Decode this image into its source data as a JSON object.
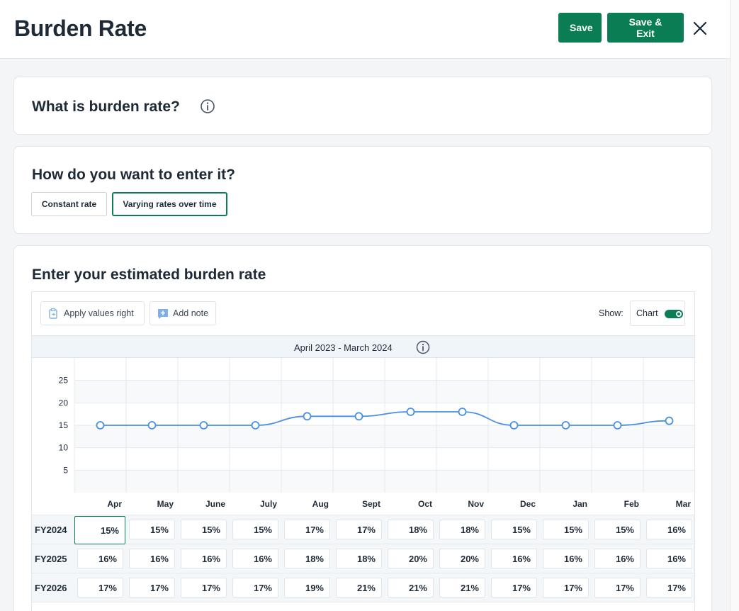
{
  "header": {
    "title": "Burden Rate",
    "save_label": "Save",
    "save_exit_label": "Save & Exit"
  },
  "section_what": {
    "title": "What is burden rate?"
  },
  "section_how": {
    "title": "How do you want to enter it?",
    "options": [
      "Constant rate",
      "Varying rates over time"
    ],
    "selected": "Varying rates over time"
  },
  "section_enter": {
    "title": "Enter your estimated burden rate",
    "toolbar": {
      "apply_label": "Apply values right",
      "note_label": "Add note",
      "show_label": "Show:",
      "chart_label": "Chart",
      "chart_on": true
    },
    "period": "April 2023 - March 2024",
    "months": [
      "Apr",
      "May",
      "June",
      "July",
      "Aug",
      "Sept",
      "Oct",
      "Nov",
      "Dec",
      "Jan",
      "Feb",
      "Mar"
    ],
    "rows": [
      {
        "label": "FY2024",
        "values": [
          "15%",
          "15%",
          "15%",
          "15%",
          "17%",
          "17%",
          "18%",
          "18%",
          "15%",
          "15%",
          "15%",
          "16%"
        ]
      },
      {
        "label": "FY2025",
        "values": [
          "16%",
          "16%",
          "16%",
          "16%",
          "18%",
          "18%",
          "20%",
          "20%",
          "16%",
          "16%",
          "16%",
          "16%"
        ]
      },
      {
        "label": "FY2026",
        "values": [
          "17%",
          "17%",
          "17%",
          "17%",
          "19%",
          "21%",
          "21%",
          "21%",
          "17%",
          "17%",
          "17%",
          "17%"
        ]
      }
    ]
  },
  "chart_data": {
    "type": "line",
    "categories": [
      "Apr",
      "May",
      "June",
      "July",
      "Aug",
      "Sept",
      "Oct",
      "Nov",
      "Dec",
      "Jan",
      "Feb",
      "Mar"
    ],
    "series": [
      {
        "values": [
          15,
          15,
          15,
          15,
          17,
          17,
          18,
          18,
          15,
          15,
          15,
          16
        ]
      }
    ],
    "yticks": [
      5,
      10,
      15,
      20,
      25
    ],
    "ylim": [
      0,
      30
    ],
    "color": "#4a90e2",
    "grid": true
  }
}
